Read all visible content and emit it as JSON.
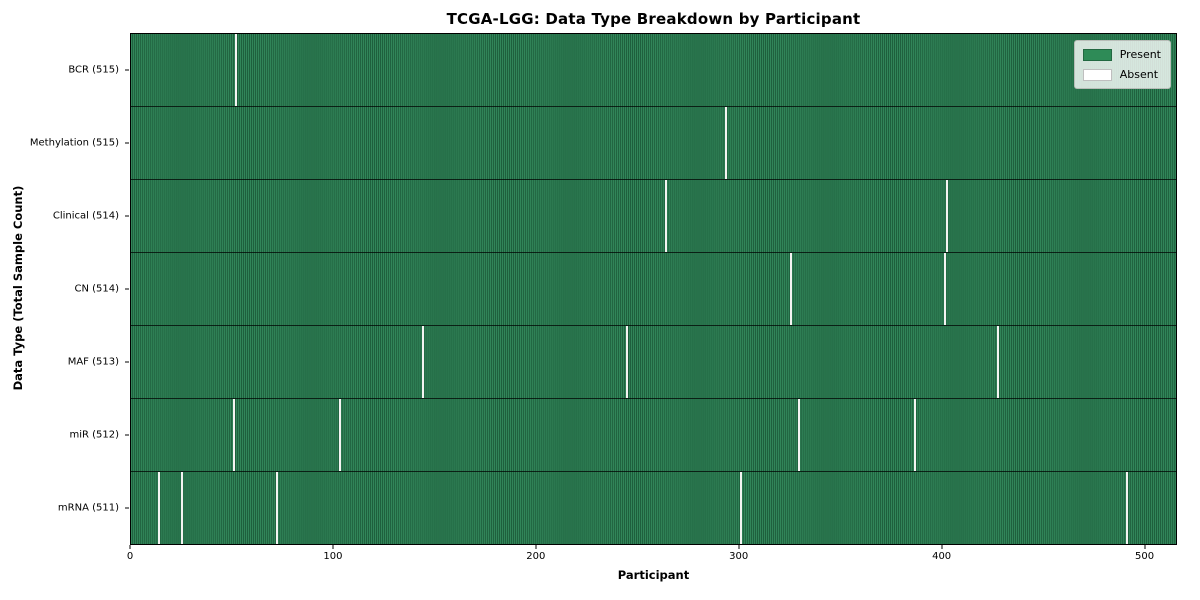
{
  "chart_data": {
    "type": "heatmap",
    "title": "TCGA-LGG: Data Type Breakdown by Participant",
    "xlabel": "Participant",
    "ylabel": "Data Type (Total Sample Count)",
    "x_ticks": [
      0,
      100,
      200,
      300,
      400,
      500
    ],
    "xlim": [
      0,
      516
    ],
    "total_participants": 516,
    "grid": false,
    "legend_position": "upper right",
    "colors": {
      "present": "#2e8b57",
      "present_stripe_dark": "#1c5a39",
      "absent": "#ffffff",
      "row_separator": "#1a1a1a",
      "plot_border": "#000000"
    },
    "legend": [
      {
        "label": "Present",
        "color": "#2e8b57"
      },
      {
        "label": "Absent",
        "color": "#ffffff"
      }
    ],
    "rows": [
      {
        "label": "BCR (515)",
        "data_type": "bcr",
        "present_count": 515,
        "absent_participants": [
          52
        ]
      },
      {
        "label": "Methylation (515)",
        "data_type": "methylation",
        "present_count": 515,
        "absent_participants": [
          294
        ]
      },
      {
        "label": "Clinical (514)",
        "data_type": "clinical",
        "present_count": 514,
        "absent_participants": [
          264,
          403
        ]
      },
      {
        "label": "CN (514)",
        "data_type": "cn",
        "present_count": 514,
        "absent_participants": [
          326,
          402
        ]
      },
      {
        "label": "MAF (513)",
        "data_type": "maf",
        "present_count": 513,
        "absent_participants": [
          144,
          245,
          428
        ]
      },
      {
        "label": "miR (512)",
        "data_type": "mir",
        "present_count": 512,
        "absent_participants": [
          51,
          103,
          330,
          387
        ]
      },
      {
        "label": "mRNA (511)",
        "data_type": "mrna",
        "present_count": 511,
        "absent_participants": [
          14,
          25,
          72,
          301,
          492
        ]
      }
    ]
  }
}
